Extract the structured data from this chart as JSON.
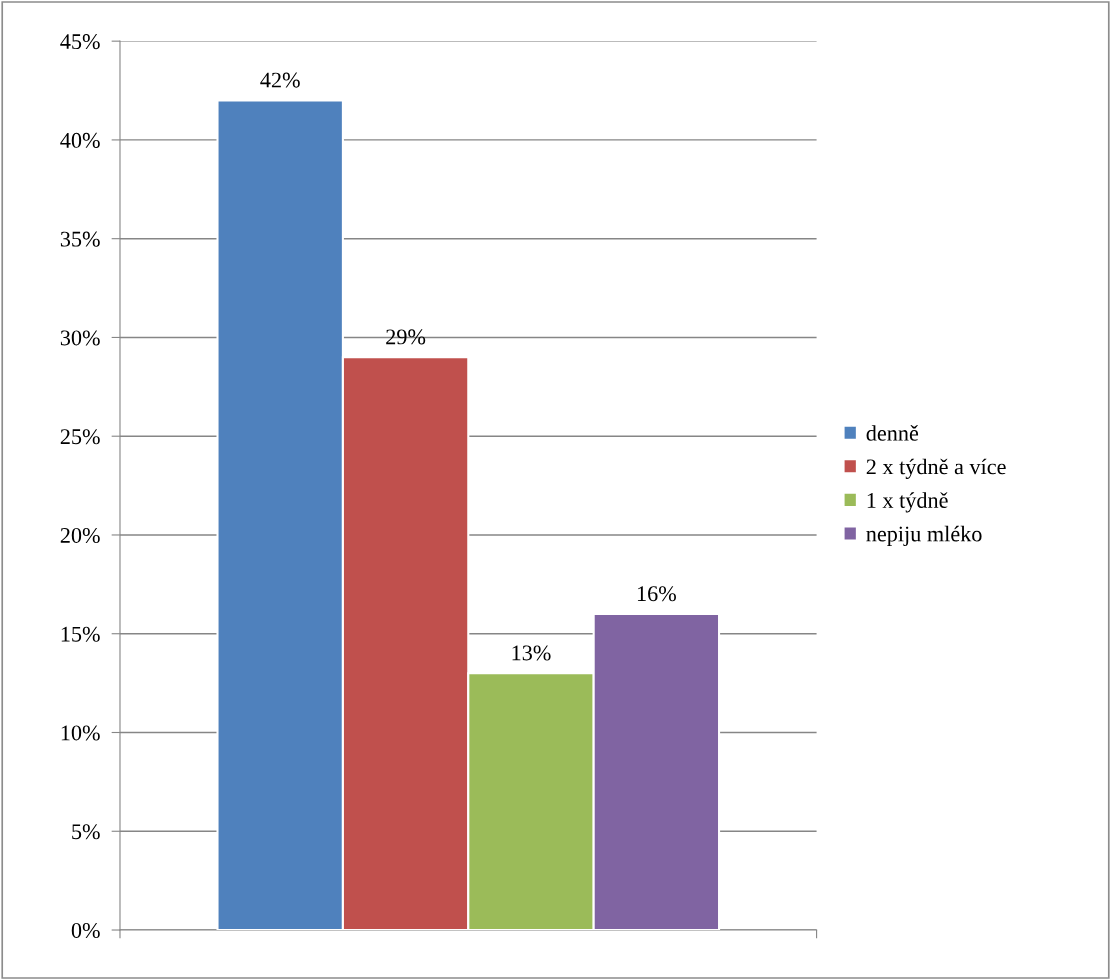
{
  "chart_data": {
    "type": "bar",
    "categories": [
      null
    ],
    "series": [
      {
        "name": "denně",
        "color": "#4f81bd",
        "values": [
          42
        ],
        "value_labels": [
          "42%"
        ]
      },
      {
        "name": "2 x týdně a více",
        "color": "#c0504d",
        "values": [
          29
        ],
        "value_labels": [
          "29%"
        ]
      },
      {
        "name": "1 x týdně",
        "color": "#9bbb59",
        "values": [
          13
        ],
        "value_labels": [
          "13%"
        ]
      },
      {
        "name": "nepiju mléko",
        "color": "#8064a2",
        "values": [
          16
        ],
        "value_labels": [
          "16%"
        ]
      }
    ],
    "ylim": [
      0,
      45
    ],
    "yticks": [
      {
        "value": 0,
        "label": "0%"
      },
      {
        "value": 5,
        "label": "5%"
      },
      {
        "value": 10,
        "label": "10%"
      },
      {
        "value": 15,
        "label": "15%"
      },
      {
        "value": 20,
        "label": "20%"
      },
      {
        "value": 25,
        "label": "25%"
      },
      {
        "value": 30,
        "label": "30%"
      },
      {
        "value": 35,
        "label": "35%"
      },
      {
        "value": 40,
        "label": "40%"
      },
      {
        "value": 45,
        "label": "45%"
      }
    ],
    "grid": "y",
    "legend": "right"
  }
}
